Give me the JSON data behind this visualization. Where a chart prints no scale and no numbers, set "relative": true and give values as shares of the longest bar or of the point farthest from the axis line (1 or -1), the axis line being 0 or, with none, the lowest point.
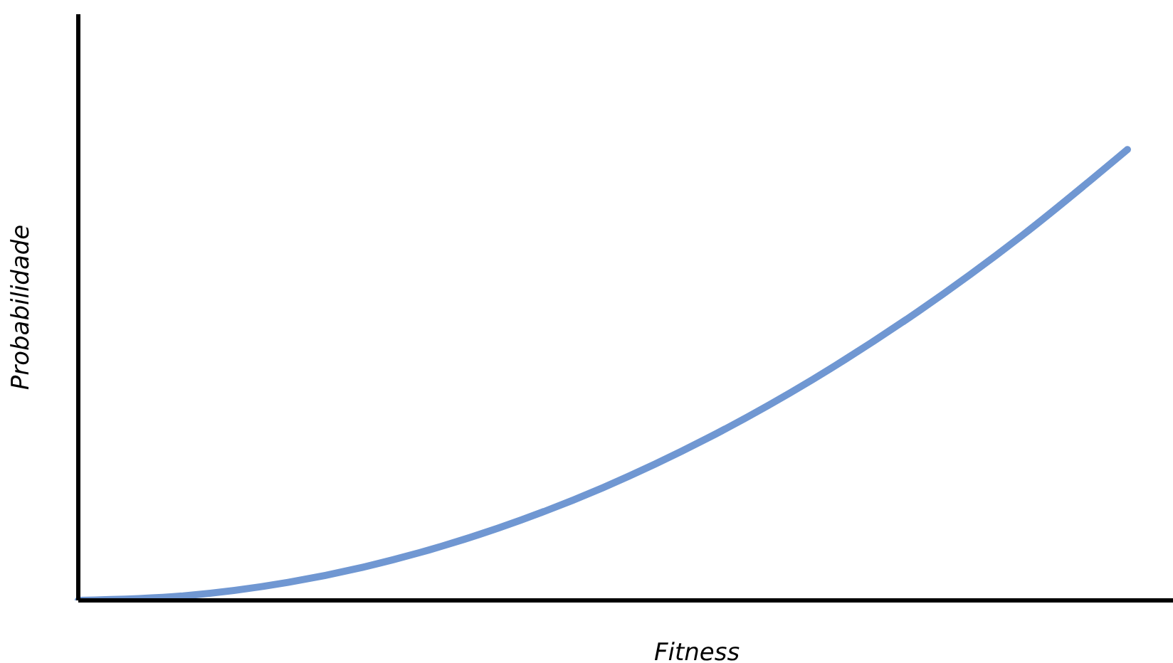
{
  "chart_data": {
    "type": "line",
    "relative": true,
    "xlabel": "Fitness",
    "ylabel": "Probabilidade",
    "categories": [
      null,
      null,
      null,
      null,
      null,
      null,
      null,
      null,
      null,
      null,
      null
    ],
    "series": [
      {
        "color": "#7097d2",
        "values": [
          0,
          0.01,
          0.04,
          0.09,
          0.16,
          0.25,
          0.36,
          0.49,
          0.64,
          0.81,
          1
        ]
      }
    ],
    "grid": false,
    "legend": false,
    "marker": "none",
    "line_style": "solid"
  }
}
